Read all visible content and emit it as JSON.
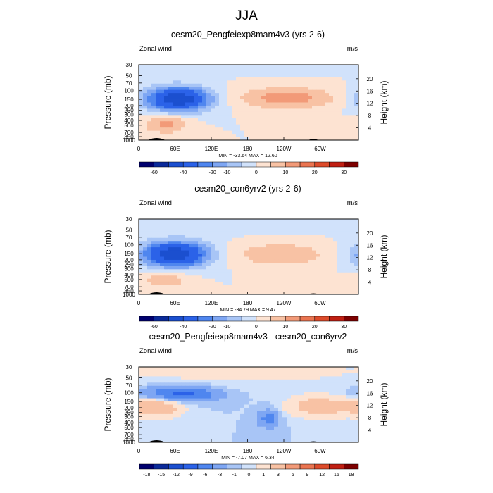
{
  "figure_title": "JJA",
  "colors": {
    "wind_levels": [
      -60,
      -50,
      -40,
      -30,
      -20,
      -15,
      -10,
      -5,
      0,
      5,
      10,
      15,
      20,
      25,
      30
    ],
    "wind_colors": [
      "#00006e",
      "#0a2a9a",
      "#1b4fcf",
      "#2b62e8",
      "#4f86ef",
      "#7ea6f3",
      "#a8c5f6",
      "#d1e2fb",
      "#fde3d2",
      "#f8c2a4",
      "#f29a78",
      "#ea7450",
      "#dd4b2b",
      "#c01f12",
      "#7d0000"
    ],
    "diff_levels": [
      -18,
      -15,
      -12,
      -9,
      -6,
      -3,
      -1,
      0,
      1,
      3,
      6,
      9,
      12,
      15,
      18
    ],
    "diff_colors": [
      "#00006e",
      "#0a2a9a",
      "#1b4fcf",
      "#2b62e8",
      "#4f86ef",
      "#7ea6f3",
      "#a8c5f6",
      "#d1e2fb",
      "#fde3d2",
      "#f8c2a4",
      "#f29a78",
      "#ea7450",
      "#dd4b2b",
      "#c01f12",
      "#7d0000"
    ]
  },
  "chart_data": [
    {
      "type": "heatmap",
      "title": "cesm20_Pengfeiexp8mam4v3 (yrs 2-6)",
      "left_label": "Zonal wind",
      "right_label": "m/s",
      "ylabel": "Pressure (mb)",
      "ylabel_right": "Height (km)",
      "x_ticks": [
        "0",
        "60E",
        "120E",
        "180",
        "120W",
        "60W"
      ],
      "y_ticks": [
        "30",
        "50",
        "70",
        "100",
        "150",
        "200",
        "250",
        "300",
        "400",
        "500",
        "700",
        "850",
        "1000"
      ],
      "y_ticks_right": [
        "20",
        "16",
        "12",
        "8",
        "4"
      ],
      "stats": "MIN = -33.64  MAX =  12.60",
      "colorbar_labels": [
        "-60",
        "-40",
        "-20",
        "-10",
        "0",
        "10",
        "20",
        "30"
      ],
      "scale": "wind",
      "min": -33.64,
      "max": 12.6,
      "features": [
        {
          "lon": 65,
          "logp": 5.0,
          "sx": 38,
          "sy": 0.4,
          "amp": -37
        },
        {
          "lon": 45,
          "logp": 6.15,
          "sx": 26,
          "sy": 0.32,
          "amp": 12
        },
        {
          "lon": 245,
          "logp": 4.95,
          "sx": 60,
          "sy": 0.36,
          "amp": 13
        },
        {
          "lon": 170,
          "logp": 3.4,
          "sx": 200,
          "sy": 0.25,
          "amp": -3
        }
      ]
    },
    {
      "type": "heatmap",
      "title": "cesm20_con6yrv2 (yrs 2-6)",
      "left_label": "Zonal wind",
      "right_label": "m/s",
      "ylabel": "Pressure (mb)",
      "ylabel_right": "Height (km)",
      "x_ticks": [
        "0",
        "60E",
        "120E",
        "180",
        "120W",
        "60W"
      ],
      "y_ticks": [
        "30",
        "50",
        "70",
        "100",
        "150",
        "200",
        "250",
        "300",
        "400",
        "500",
        "700",
        "850",
        "1000"
      ],
      "y_ticks_right": [
        "20",
        "16",
        "12",
        "8",
        "4"
      ],
      "stats": "MIN = -34.79  MAX =   9.47",
      "colorbar_labels": [
        "-60",
        "-40",
        "-20",
        "-10",
        "0",
        "10",
        "20",
        "30"
      ],
      "scale": "wind",
      "min": -34.79,
      "max": 9.47,
      "features": [
        {
          "lon": 60,
          "logp": 5.05,
          "sx": 38,
          "sy": 0.42,
          "amp": -38
        },
        {
          "lon": 45,
          "logp": 6.2,
          "sx": 28,
          "sy": 0.3,
          "amp": 9
        },
        {
          "lon": 235,
          "logp": 5.05,
          "sx": 55,
          "sy": 0.38,
          "amp": 10
        },
        {
          "lon": 190,
          "logp": 3.6,
          "sx": 200,
          "sy": 0.3,
          "amp": -3
        }
      ]
    },
    {
      "type": "heatmap",
      "title": "cesm20_Pengfeiexp8mam4v3 - cesm20_con6yrv2",
      "left_label": "Zonal wind",
      "right_label": "m/s",
      "ylabel": "Pressure (mb)",
      "ylabel_right": "Height (km)",
      "x_ticks": [
        "0",
        "60E",
        "120E",
        "180",
        "120W",
        "60W"
      ],
      "y_ticks": [
        "30",
        "50",
        "70",
        "100",
        "150",
        "200",
        "250",
        "300",
        "400",
        "500",
        "700",
        "850",
        "1000"
      ],
      "y_ticks_right": [
        "20",
        "16",
        "12",
        "8",
        "4"
      ],
      "stats": "MIN =  -7.07  MAX =   6.34",
      "colorbar_labels": [
        "-18",
        "-15",
        "-12",
        "-9",
        "-6",
        "-3",
        "-1",
        "0",
        "1",
        "3",
        "6",
        "9",
        "12",
        "15",
        "18"
      ],
      "scale": "diff",
      "min": -7.07,
      "max": 6.34,
      "features": [
        {
          "lon": 70,
          "logp": 4.65,
          "sx": 40,
          "sy": 0.25,
          "amp": -7
        },
        {
          "lon": 30,
          "logp": 5.3,
          "sx": 28,
          "sy": 0.3,
          "amp": 6
        },
        {
          "lon": 300,
          "logp": 5.25,
          "sx": 35,
          "sy": 0.35,
          "amp": 5
        },
        {
          "lon": 215,
          "logp": 5.8,
          "sx": 12,
          "sy": 0.3,
          "amp": -4
        },
        {
          "lon": 170,
          "logp": 3.6,
          "sx": 200,
          "sy": 0.5,
          "amp": 1.5
        }
      ]
    }
  ]
}
